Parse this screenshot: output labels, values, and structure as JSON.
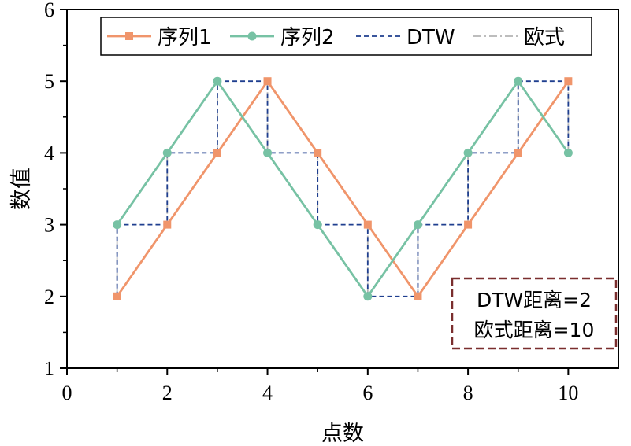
{
  "chart_data": {
    "type": "line",
    "xlabel": "点数",
    "ylabel": "数值",
    "xlim": [
      0,
      11
    ],
    "ylim": [
      1,
      6
    ],
    "xticks": [
      0,
      2,
      4,
      6,
      8,
      10
    ],
    "yticks": [
      1,
      2,
      3,
      4,
      5,
      6
    ],
    "grid": false,
    "legend_position": "top",
    "series": [
      {
        "name": "序列1",
        "color": "#f0956b",
        "marker": "square",
        "x": [
          1,
          2,
          3,
          4,
          5,
          6,
          7,
          8,
          9,
          10
        ],
        "y": [
          2,
          3,
          4,
          5,
          4,
          3,
          2,
          3,
          4,
          5
        ]
      },
      {
        "name": "序列2",
        "color": "#77c2a4",
        "marker": "circle",
        "x": [
          1,
          2,
          3,
          4,
          5,
          6,
          7,
          8,
          9,
          10
        ],
        "y": [
          3,
          4,
          5,
          4,
          3,
          2,
          3,
          4,
          5,
          4
        ]
      }
    ],
    "connectors": [
      {
        "name": "DTW",
        "color": "#1f3f8f",
        "style": "dashed",
        "path": [
          [
            1,
            2
          ],
          [
            1,
            3
          ],
          [
            2,
            3
          ],
          [
            2,
            4
          ],
          [
            3,
            4
          ],
          [
            3,
            5
          ],
          [
            4,
            5
          ],
          [
            4,
            4
          ],
          [
            5,
            4
          ],
          [
            5,
            3
          ],
          [
            6,
            3
          ],
          [
            6,
            2
          ],
          [
            7,
            2
          ],
          [
            7,
            3
          ],
          [
            8,
            3
          ],
          [
            8,
            4
          ],
          [
            9,
            4
          ],
          [
            9,
            5
          ],
          [
            10,
            5
          ],
          [
            10,
            4
          ]
        ]
      },
      {
        "name": "欧式",
        "color": "#b4b4b4",
        "style": "dashdot",
        "pairs": [
          [
            1,
            2,
            3
          ],
          [
            2,
            3,
            4
          ],
          [
            3,
            4,
            5
          ],
          [
            4,
            5,
            4
          ],
          [
            5,
            4,
            3
          ],
          [
            6,
            3,
            2
          ],
          [
            7,
            2,
            3
          ],
          [
            8,
            3,
            4
          ],
          [
            9,
            4,
            5
          ],
          [
            10,
            5,
            4
          ]
        ]
      }
    ],
    "annotation": {
      "lines": [
        "DTW距离=2",
        "欧式距离=10"
      ],
      "border_color": "#7a2e2e"
    }
  }
}
